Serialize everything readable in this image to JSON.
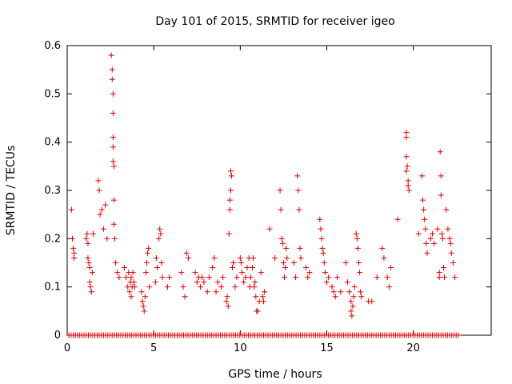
{
  "chart_data": {
    "type": "scatter",
    "title": "Day 101 of 2015, SRMTID for receiver igeo",
    "xlabel": "GPS time / hours",
    "ylabel": "SRMTID / TECUs",
    "xlim": [
      0,
      24.5
    ],
    "ylim": [
      0,
      0.6
    ],
    "xticks": [
      0,
      5,
      10,
      15,
      20
    ],
    "yticks": [
      0,
      0.1,
      0.2,
      0.3,
      0.4,
      0.5,
      0.6
    ],
    "xtick_labels": [
      "0",
      "5",
      "10",
      "15",
      "20"
    ],
    "ytick_labels": [
      "0",
      "0.1",
      "0.2",
      "0.3",
      "0.4",
      "0.5",
      "0.6"
    ],
    "grid": false,
    "marker": "+",
    "color": "#e00000",
    "zero_baseline": {
      "x_start": 0.1,
      "x_end": 22.7,
      "step": 0.125,
      "y": 0
    },
    "series": [
      {
        "name": "SRMTID",
        "points": [
          [
            0.25,
            0.26
          ],
          [
            0.3,
            0.2
          ],
          [
            0.35,
            0.18
          ],
          [
            0.4,
            0.16
          ],
          [
            0.4,
            0.17
          ],
          [
            1.1,
            0.2
          ],
          [
            1.15,
            0.21
          ],
          [
            1.2,
            0.19
          ],
          [
            1.2,
            0.16
          ],
          [
            1.25,
            0.15
          ],
          [
            1.3,
            0.14
          ],
          [
            1.3,
            0.11
          ],
          [
            1.35,
            0.1
          ],
          [
            1.4,
            0.09
          ],
          [
            1.45,
            0.13
          ],
          [
            1.5,
            0.21
          ],
          [
            1.8,
            0.32
          ],
          [
            1.85,
            0.3
          ],
          [
            1.9,
            0.25
          ],
          [
            2.0,
            0.26
          ],
          [
            2.1,
            0.22
          ],
          [
            2.2,
            0.27
          ],
          [
            2.3,
            0.2
          ],
          [
            2.55,
            0.58
          ],
          [
            2.6,
            0.55
          ],
          [
            2.6,
            0.53
          ],
          [
            2.65,
            0.5
          ],
          [
            2.65,
            0.46
          ],
          [
            2.65,
            0.41
          ],
          [
            2.65,
            0.39
          ],
          [
            2.65,
            0.36
          ],
          [
            2.7,
            0.35
          ],
          [
            2.7,
            0.28
          ],
          [
            2.7,
            0.23
          ],
          [
            2.75,
            0.2
          ],
          [
            2.8,
            0.15
          ],
          [
            2.9,
            0.13
          ],
          [
            3.0,
            0.12
          ],
          [
            3.3,
            0.14
          ],
          [
            3.4,
            0.12
          ],
          [
            3.5,
            0.1
          ],
          [
            3.55,
            0.13
          ],
          [
            3.6,
            0.09
          ],
          [
            3.65,
            0.11
          ],
          [
            3.7,
            0.08
          ],
          [
            3.7,
            0.12
          ],
          [
            3.75,
            0.1
          ],
          [
            3.8,
            0.13
          ],
          [
            3.85,
            0.11
          ],
          [
            3.9,
            0.1
          ],
          [
            4.3,
            0.09
          ],
          [
            4.35,
            0.07
          ],
          [
            4.4,
            0.06
          ],
          [
            4.45,
            0.05
          ],
          [
            4.5,
            0.08
          ],
          [
            4.55,
            0.13
          ],
          [
            4.6,
            0.15
          ],
          [
            4.65,
            0.17
          ],
          [
            4.7,
            0.18
          ],
          [
            4.75,
            0.1
          ],
          [
            5.1,
            0.11
          ],
          [
            5.15,
            0.16
          ],
          [
            5.2,
            0.14
          ],
          [
            5.3,
            0.2
          ],
          [
            5.35,
            0.22
          ],
          [
            5.4,
            0.21
          ],
          [
            5.45,
            0.15
          ],
          [
            5.5,
            0.12
          ],
          [
            5.8,
            0.1
          ],
          [
            5.9,
            0.12
          ],
          [
            6.6,
            0.13
          ],
          [
            6.7,
            0.1
          ],
          [
            6.8,
            0.08
          ],
          [
            6.9,
            0.17
          ],
          [
            7.0,
            0.16
          ],
          [
            7.4,
            0.13
          ],
          [
            7.5,
            0.11
          ],
          [
            7.6,
            0.12
          ],
          [
            7.7,
            0.1
          ],
          [
            7.8,
            0.12
          ],
          [
            7.9,
            0.11
          ],
          [
            8.1,
            0.09
          ],
          [
            8.2,
            0.12
          ],
          [
            8.4,
            0.14
          ],
          [
            8.5,
            0.16
          ],
          [
            8.6,
            0.09
          ],
          [
            8.7,
            0.11
          ],
          [
            8.9,
            0.1
          ],
          [
            9.0,
            0.12
          ],
          [
            9.2,
            0.07
          ],
          [
            9.25,
            0.08
          ],
          [
            9.3,
            0.06
          ],
          [
            9.35,
            0.21
          ],
          [
            9.4,
            0.26
          ],
          [
            9.4,
            0.28
          ],
          [
            9.45,
            0.3
          ],
          [
            9.45,
            0.34
          ],
          [
            9.5,
            0.33
          ],
          [
            9.55,
            0.14
          ],
          [
            9.6,
            0.15
          ],
          [
            9.7,
            0.1
          ],
          [
            9.8,
            0.12
          ],
          [
            10.0,
            0.16
          ],
          [
            10.05,
            0.15
          ],
          [
            10.1,
            0.13
          ],
          [
            10.2,
            0.11
          ],
          [
            10.3,
            0.12
          ],
          [
            10.4,
            0.14
          ],
          [
            10.5,
            0.16
          ],
          [
            10.55,
            0.1
          ],
          [
            10.6,
            0.12
          ],
          [
            10.7,
            0.14
          ],
          [
            10.75,
            0.16
          ],
          [
            10.8,
            0.1
          ],
          [
            10.85,
            0.11
          ],
          [
            10.9,
            0.08
          ],
          [
            10.95,
            0.05
          ],
          [
            11.0,
            0.05
          ],
          [
            11.1,
            0.07
          ],
          [
            11.2,
            0.13
          ],
          [
            11.3,
            0.08
          ],
          [
            11.35,
            0.07
          ],
          [
            11.4,
            0.09
          ],
          [
            11.7,
            0.22
          ],
          [
            12.0,
            0.16
          ],
          [
            12.3,
            0.3
          ],
          [
            12.35,
            0.26
          ],
          [
            12.4,
            0.2
          ],
          [
            12.45,
            0.19
          ],
          [
            12.5,
            0.15
          ],
          [
            12.55,
            0.12
          ],
          [
            12.6,
            0.14
          ],
          [
            12.65,
            0.18
          ],
          [
            12.7,
            0.16
          ],
          [
            13.1,
            0.15
          ],
          [
            13.2,
            0.12
          ],
          [
            13.3,
            0.33
          ],
          [
            13.35,
            0.3
          ],
          [
            13.4,
            0.26
          ],
          [
            13.45,
            0.18
          ],
          [
            13.5,
            0.16
          ],
          [
            13.8,
            0.14
          ],
          [
            13.9,
            0.12
          ],
          [
            14.0,
            0.13
          ],
          [
            14.6,
            0.24
          ],
          [
            14.65,
            0.22
          ],
          [
            14.7,
            0.2
          ],
          [
            14.75,
            0.18
          ],
          [
            14.8,
            0.17
          ],
          [
            14.85,
            0.15
          ],
          [
            14.9,
            0.13
          ],
          [
            15.0,
            0.11
          ],
          [
            15.1,
            0.12
          ],
          [
            15.3,
            0.1
          ],
          [
            15.4,
            0.09
          ],
          [
            15.5,
            0.08
          ],
          [
            15.6,
            0.12
          ],
          [
            15.8,
            0.09
          ],
          [
            16.1,
            0.15
          ],
          [
            16.2,
            0.11
          ],
          [
            16.3,
            0.09
          ],
          [
            16.4,
            0.07
          ],
          [
            16.4,
            0.05
          ],
          [
            16.45,
            0.04
          ],
          [
            16.5,
            0.06
          ],
          [
            16.55,
            0.08
          ],
          [
            16.6,
            0.1
          ],
          [
            16.7,
            0.21
          ],
          [
            16.75,
            0.2
          ],
          [
            16.8,
            0.18
          ],
          [
            16.85,
            0.15
          ],
          [
            16.9,
            0.13
          ],
          [
            16.95,
            0.09
          ],
          [
            17.0,
            0.08
          ],
          [
            17.4,
            0.07
          ],
          [
            17.6,
            0.07
          ],
          [
            17.9,
            0.12
          ],
          [
            18.2,
            0.18
          ],
          [
            18.3,
            0.16
          ],
          [
            18.5,
            0.12
          ],
          [
            18.6,
            0.1
          ],
          [
            18.7,
            0.14
          ],
          [
            19.1,
            0.24
          ],
          [
            19.6,
            0.42
          ],
          [
            19.6,
            0.41
          ],
          [
            19.6,
            0.37
          ],
          [
            19.6,
            0.34
          ],
          [
            19.65,
            0.35
          ],
          [
            19.7,
            0.32
          ],
          [
            19.7,
            0.31
          ],
          [
            19.75,
            0.3
          ],
          [
            20.3,
            0.21
          ],
          [
            20.5,
            0.33
          ],
          [
            20.55,
            0.28
          ],
          [
            20.6,
            0.26
          ],
          [
            20.65,
            0.24
          ],
          [
            20.7,
            0.22
          ],
          [
            20.75,
            0.19
          ],
          [
            20.8,
            0.17
          ],
          [
            21.0,
            0.2
          ],
          [
            21.1,
            0.21
          ],
          [
            21.2,
            0.19
          ],
          [
            21.4,
            0.22
          ],
          [
            21.5,
            0.13
          ],
          [
            21.5,
            0.12
          ],
          [
            21.55,
            0.38
          ],
          [
            21.6,
            0.33
          ],
          [
            21.6,
            0.29
          ],
          [
            21.65,
            0.21
          ],
          [
            21.7,
            0.2
          ],
          [
            21.75,
            0.14
          ],
          [
            21.8,
            0.12
          ],
          [
            21.9,
            0.26
          ],
          [
            22.0,
            0.22
          ],
          [
            22.1,
            0.2
          ],
          [
            22.15,
            0.19
          ],
          [
            22.2,
            0.17
          ],
          [
            22.3,
            0.15
          ],
          [
            22.4,
            0.12
          ]
        ]
      }
    ]
  }
}
